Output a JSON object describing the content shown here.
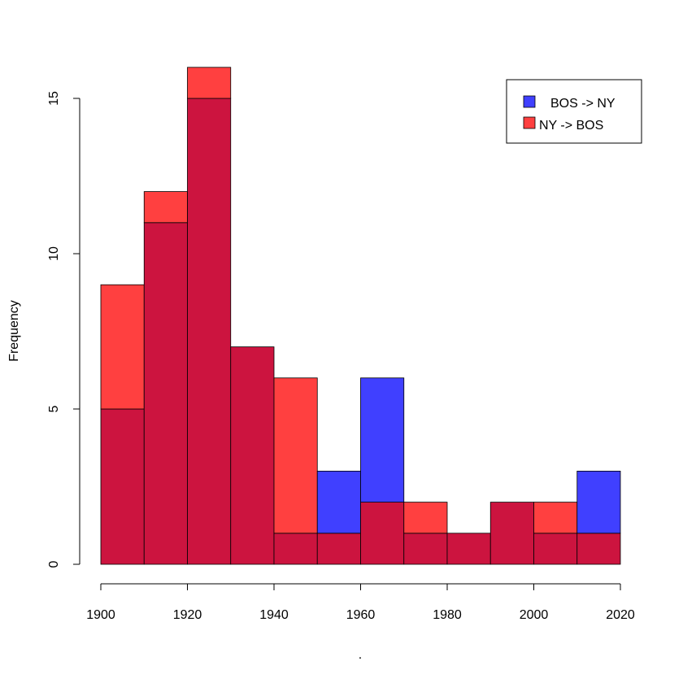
{
  "chart_data": {
    "type": "bar",
    "subtype": "overlaid-histogram",
    "title": "",
    "xlabel": ".",
    "ylabel": "Frequency",
    "xlim": [
      1900,
      2020
    ],
    "ylim": [
      0,
      15
    ],
    "bin_width": 10,
    "bin_starts": [
      1900,
      1910,
      1920,
      1930,
      1940,
      1950,
      1960,
      1970,
      1980,
      1990,
      2000,
      2010
    ],
    "x_ticks": [
      "1900",
      "1920",
      "1940",
      "1960",
      "1980",
      "2000",
      "2020"
    ],
    "y_ticks": [
      "0",
      "5",
      "10",
      "15"
    ],
    "series": [
      {
        "name": "BOS -> NY",
        "color": "#4040ff",
        "values": [
          5,
          11,
          15,
          7,
          1,
          3,
          6,
          1,
          1,
          2,
          1,
          3
        ]
      },
      {
        "name": "NY -> BOS",
        "color": "#ff4040",
        "values": [
          9,
          12,
          16,
          7,
          6,
          1,
          2,
          2,
          1,
          2,
          2,
          1
        ]
      }
    ],
    "overlap_color": "#cc143f",
    "legend": {
      "position": "top-right",
      "items": [
        {
          "label": "BOS -> NY",
          "color": "#4040ff"
        },
        {
          "label": "NY -> BOS",
          "color": "#ff4040"
        }
      ]
    }
  }
}
